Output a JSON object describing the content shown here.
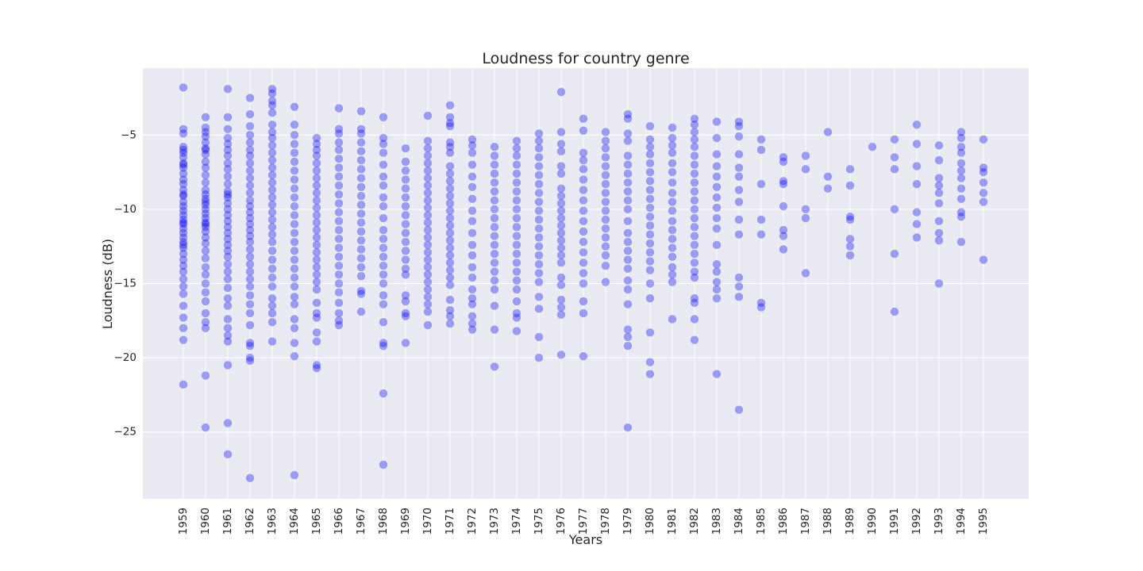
{
  "chart_data": {
    "type": "scatter",
    "title": "Loudness for country genre",
    "xlabel": "Years",
    "ylabel": "Loudness (dB)",
    "x_ticks": [
      "1959",
      "1960",
      "1961",
      "1962",
      "1963",
      "1964",
      "1965",
      "1966",
      "1967",
      "1968",
      "1969",
      "1970",
      "1971",
      "1972",
      "1973",
      "1974",
      "1975",
      "1976",
      "1977",
      "1978",
      "1979",
      "1980",
      "1981",
      "1982",
      "1983",
      "1984",
      "1985",
      "1986",
      "1987",
      "1988",
      "1989",
      "1990",
      "1991",
      "1992",
      "1993",
      "1994",
      "1995"
    ],
    "y_ticks": [
      -25,
      -20,
      -15,
      -10,
      -5
    ],
    "ylim": [
      -29.5,
      -0.5
    ],
    "grid": true,
    "marker_color": "#0000ff",
    "marker_alpha": 0.35,
    "points": [
      {
        "year": "1959",
        "y": [
          -1.8,
          -4.6,
          -4.9,
          -5.8,
          -6.2,
          -6.5,
          -6.9,
          -7.2,
          -7.6,
          -8.0,
          -8.3,
          -8.7,
          -9.1,
          -9.5,
          -9.8,
          -10.1,
          -10.4,
          -10.7,
          -11.0,
          -11.3,
          -11.6,
          -11.9,
          -12.2,
          -12.6,
          -13.0,
          -13.4,
          -13.8,
          -14.2,
          -14.7,
          -15.2,
          -15.7,
          -16.5,
          -17.3,
          -18.0,
          -18.8,
          -21.8,
          -6.0,
          -7.0,
          -9.0,
          -10.9,
          -12.4
        ]
      },
      {
        "year": "1960",
        "y": [
          -3.8,
          -4.5,
          -4.8,
          -5.1,
          -5.5,
          -5.9,
          -6.3,
          -6.8,
          -7.2,
          -7.7,
          -8.2,
          -8.7,
          -9.0,
          -9.3,
          -9.7,
          -10.0,
          -10.3,
          -10.6,
          -10.9,
          -11.2,
          -11.5,
          -11.9,
          -12.3,
          -12.8,
          -13.3,
          -13.9,
          -14.4,
          -15.0,
          -15.6,
          -16.2,
          -17.0,
          -17.6,
          -18.0,
          -21.2,
          -24.7,
          -6.0,
          -9.5,
          -11.0
        ]
      },
      {
        "year": "1961",
        "y": [
          -1.9,
          -3.8,
          -4.6,
          -5.2,
          -5.6,
          -6.0,
          -6.4,
          -6.9,
          -7.3,
          -7.8,
          -8.3,
          -8.8,
          -9.2,
          -9.6,
          -10.0,
          -10.4,
          -10.8,
          -11.2,
          -11.6,
          -12.0,
          -12.4,
          -12.8,
          -13.2,
          -13.7,
          -14.2,
          -14.7,
          -15.3,
          -16.0,
          -16.5,
          -17.4,
          -18.0,
          -18.5,
          -18.9,
          -20.5,
          -24.4,
          -26.5,
          -9.0
        ]
      },
      {
        "year": "1962",
        "y": [
          -2.5,
          -3.6,
          -4.4,
          -5.0,
          -5.5,
          -6.0,
          -6.4,
          -6.9,
          -7.4,
          -7.9,
          -8.4,
          -8.9,
          -9.4,
          -9.8,
          -10.2,
          -10.6,
          -11.0,
          -11.4,
          -11.8,
          -12.2,
          -12.7,
          -13.2,
          -13.7,
          -14.2,
          -14.7,
          -15.2,
          -15.8,
          -16.4,
          -17.0,
          -17.8,
          -19.0,
          -19.2,
          -20.0,
          -20.2,
          -28.1
        ]
      },
      {
        "year": "1963",
        "y": [
          -1.9,
          -2.2,
          -2.7,
          -3.0,
          -3.5,
          -4.3,
          -4.8,
          -5.2,
          -5.7,
          -6.2,
          -6.7,
          -7.2,
          -7.7,
          -8.2,
          -8.7,
          -9.2,
          -9.7,
          -10.2,
          -10.7,
          -11.2,
          -11.7,
          -12.2,
          -12.8,
          -13.4,
          -14.0,
          -14.6,
          -15.2,
          -16.0,
          -16.5,
          -17.0,
          -17.6,
          -18.9
        ]
      },
      {
        "year": "1964",
        "y": [
          -3.1,
          -4.3,
          -5.0,
          -5.6,
          -6.2,
          -6.8,
          -7.4,
          -8.0,
          -8.6,
          -9.2,
          -9.8,
          -10.4,
          -11.0,
          -11.6,
          -12.2,
          -12.8,
          -13.4,
          -14.0,
          -14.6,
          -15.2,
          -15.9,
          -16.4,
          -17.4,
          -18.0,
          -19.0,
          -19.9,
          -27.9
        ]
      },
      {
        "year": "1965",
        "y": [
          -5.2,
          -5.6,
          -6.0,
          -6.4,
          -6.9,
          -7.4,
          -7.9,
          -8.4,
          -8.9,
          -9.4,
          -9.9,
          -10.4,
          -10.9,
          -11.4,
          -11.9,
          -12.4,
          -12.9,
          -13.4,
          -13.9,
          -14.4,
          -14.9,
          -15.4,
          -16.3,
          -17.0,
          -17.3,
          -18.3,
          -18.9,
          -20.5,
          -20.7
        ]
      },
      {
        "year": "1966",
        "y": [
          -3.2,
          -4.6,
          -4.9,
          -5.5,
          -6.0,
          -6.6,
          -7.2,
          -7.8,
          -8.4,
          -9.0,
          -9.6,
          -10.2,
          -10.8,
          -11.4,
          -12.0,
          -12.6,
          -13.2,
          -13.8,
          -14.4,
          -15.0,
          -15.6,
          -16.3,
          -17.0,
          -17.5,
          -17.8
        ]
      },
      {
        "year": "1967",
        "y": [
          -3.4,
          -4.6,
          -4.9,
          -5.5,
          -6.1,
          -6.7,
          -7.3,
          -7.9,
          -8.5,
          -9.1,
          -9.7,
          -10.3,
          -10.9,
          -11.5,
          -12.1,
          -12.7,
          -13.3,
          -13.9,
          -14.5,
          -15.5,
          -15.7,
          -16.9
        ]
      },
      {
        "year": "1968",
        "y": [
          -3.8,
          -5.2,
          -5.6,
          -6.2,
          -7.0,
          -7.8,
          -8.4,
          -9.2,
          -9.8,
          -10.6,
          -11.4,
          -12.0,
          -12.6,
          -13.2,
          -13.8,
          -14.4,
          -15.0,
          -15.8,
          -16.4,
          -17.6,
          -19.0,
          -19.2,
          -22.4,
          -27.2
        ]
      },
      {
        "year": "1969",
        "y": [
          -5.9,
          -6.8,
          -7.4,
          -8.0,
          -8.6,
          -9.2,
          -9.8,
          -10.4,
          -11.0,
          -11.6,
          -12.2,
          -12.8,
          -13.4,
          -14.0,
          -14.4,
          -15.8,
          -16.2,
          -17.0,
          -17.2,
          -19.0
        ]
      },
      {
        "year": "1970",
        "y": [
          -3.7,
          -5.4,
          -5.9,
          -6.4,
          -6.9,
          -7.4,
          -7.9,
          -8.4,
          -8.9,
          -9.4,
          -9.9,
          -10.4,
          -10.9,
          -11.4,
          -11.9,
          -12.4,
          -12.9,
          -13.4,
          -13.9,
          -14.4,
          -14.9,
          -15.4,
          -15.9,
          -16.4,
          -16.9,
          -17.8
        ]
      },
      {
        "year": "1971",
        "y": [
          -3.0,
          -3.8,
          -4.2,
          -4.4,
          -5.5,
          -5.8,
          -6.2,
          -7.1,
          -7.6,
          -8.1,
          -8.6,
          -9.1,
          -9.6,
          -10.1,
          -10.6,
          -11.1,
          -11.6,
          -12.1,
          -12.6,
          -13.1,
          -13.6,
          -14.1,
          -14.6,
          -15.1,
          -16.1,
          -16.8,
          -17.2,
          -17.7
        ]
      },
      {
        "year": "1972",
        "y": [
          -5.3,
          -5.7,
          -6.2,
          -7.0,
          -7.8,
          -8.5,
          -9.3,
          -10.1,
          -10.8,
          -11.6,
          -12.4,
          -13.1,
          -13.9,
          -14.6,
          -15.4,
          -16.0,
          -16.4,
          -17.2,
          -17.7,
          -18.1
        ]
      },
      {
        "year": "1973",
        "y": [
          -5.8,
          -6.4,
          -7.0,
          -7.6,
          -8.2,
          -8.8,
          -9.4,
          -10.0,
          -10.6,
          -11.2,
          -11.8,
          -12.4,
          -13.0,
          -13.6,
          -14.2,
          -14.8,
          -15.4,
          -16.5,
          -18.1,
          -20.6
        ]
      },
      {
        "year": "1974",
        "y": [
          -5.4,
          -5.9,
          -6.4,
          -7.0,
          -7.6,
          -8.2,
          -8.8,
          -9.4,
          -10.0,
          -10.6,
          -11.2,
          -11.8,
          -12.4,
          -13.0,
          -13.6,
          -14.2,
          -14.8,
          -15.4,
          -16.2,
          -17.0,
          -17.3,
          -18.2
        ]
      },
      {
        "year": "1975",
        "y": [
          -4.9,
          -5.4,
          -5.9,
          -6.5,
          -7.1,
          -7.7,
          -8.3,
          -8.9,
          -9.5,
          -10.1,
          -10.7,
          -11.3,
          -11.9,
          -12.5,
          -13.1,
          -13.7,
          -14.3,
          -14.9,
          -15.9,
          -16.7,
          -18.6,
          -20.0
        ]
      },
      {
        "year": "1976",
        "y": [
          -2.1,
          -4.8,
          -5.6,
          -6.1,
          -7.1,
          -7.6,
          -8.6,
          -9.1,
          -9.6,
          -10.1,
          -10.6,
          -11.1,
          -11.6,
          -12.1,
          -12.6,
          -13.1,
          -13.6,
          -14.6,
          -15.1,
          -16.1,
          -16.6,
          -17.1,
          -19.8
        ]
      },
      {
        "year": "1977",
        "y": [
          -3.9,
          -4.7,
          -6.2,
          -6.7,
          -7.3,
          -8.0,
          -8.7,
          -9.4,
          -10.1,
          -10.8,
          -11.5,
          -12.2,
          -12.9,
          -13.6,
          -14.3,
          -15.0,
          -16.2,
          -17.0,
          -19.9
        ]
      },
      {
        "year": "1978",
        "y": [
          -4.8,
          -5.4,
          -5.9,
          -6.5,
          -7.1,
          -7.7,
          -8.3,
          -8.9,
          -9.5,
          -10.1,
          -10.7,
          -11.3,
          -11.9,
          -12.5,
          -13.1,
          -13.8,
          -14.9
        ]
      },
      {
        "year": "1979",
        "y": [
          -3.6,
          -3.9,
          -4.9,
          -5.4,
          -6.4,
          -7.0,
          -7.6,
          -8.2,
          -8.8,
          -9.4,
          -10.0,
          -10.8,
          -11.6,
          -12.2,
          -12.8,
          -13.4,
          -14.0,
          -14.8,
          -15.4,
          -16.4,
          -18.1,
          -18.6,
          -19.2,
          -24.7
        ]
      },
      {
        "year": "1980",
        "y": [
          -4.4,
          -5.3,
          -5.8,
          -6.3,
          -6.9,
          -7.5,
          -8.1,
          -8.7,
          -9.3,
          -9.9,
          -10.5,
          -11.1,
          -11.7,
          -12.3,
          -12.9,
          -13.5,
          -14.1,
          -15.0,
          -16.0,
          -18.3,
          -20.3,
          -21.1
        ]
      },
      {
        "year": "1981",
        "y": [
          -4.5,
          -5.2,
          -5.7,
          -6.2,
          -6.9,
          -7.5,
          -8.2,
          -8.9,
          -9.5,
          -10.1,
          -10.8,
          -11.4,
          -12.0,
          -12.6,
          -13.2,
          -13.9,
          -14.4,
          -14.9,
          -17.4
        ]
      },
      {
        "year": "1982",
        "y": [
          -3.9,
          -4.3,
          -4.8,
          -5.3,
          -5.8,
          -6.4,
          -7.0,
          -7.6,
          -8.2,
          -8.8,
          -9.4,
          -10.0,
          -10.6,
          -11.2,
          -11.8,
          -12.4,
          -13.0,
          -13.6,
          -14.2,
          -14.6,
          -16.0,
          -16.3,
          -17.4,
          -18.8
        ]
      },
      {
        "year": "1983",
        "y": [
          -4.1,
          -5.2,
          -6.3,
          -7.1,
          -7.8,
          -8.5,
          -9.2,
          -9.9,
          -10.6,
          -11.3,
          -12.4,
          -13.7,
          -14.2,
          -14.9,
          -15.4,
          -16.0,
          -21.1
        ]
      },
      {
        "year": "1984",
        "y": [
          -4.1,
          -4.4,
          -5.1,
          -6.3,
          -7.2,
          -7.8,
          -8.7,
          -9.5,
          -10.7,
          -11.7,
          -14.6,
          -15.2,
          -15.9,
          -23.5
        ]
      },
      {
        "year": "1985",
        "y": [
          -5.3,
          -6.0,
          -8.3,
          -10.7,
          -11.7,
          -16.3,
          -16.6
        ]
      },
      {
        "year": "1986",
        "y": [
          -6.5,
          -6.8,
          -8.1,
          -8.3,
          -9.8,
          -11.4,
          -11.8,
          -12.7
        ]
      },
      {
        "year": "1987",
        "y": [
          -6.4,
          -7.3,
          -10.0,
          -10.6,
          -14.3
        ]
      },
      {
        "year": "1988",
        "y": [
          -4.8,
          -7.8,
          -8.6
        ]
      },
      {
        "year": "1989",
        "y": [
          -7.3,
          -8.4,
          -10.5,
          -10.7,
          -12.0,
          -12.5,
          -13.1
        ]
      },
      {
        "year": "1990",
        "y": [
          -5.8
        ]
      },
      {
        "year": "1991",
        "y": [
          -5.3,
          -6.5,
          -7.3,
          -10.0,
          -13.0,
          -16.9
        ]
      },
      {
        "year": "1992",
        "y": [
          -4.3,
          -5.6,
          -7.1,
          -8.3,
          -10.2,
          -11.0,
          -11.9
        ]
      },
      {
        "year": "1993",
        "y": [
          -5.7,
          -6.7,
          -7.9,
          -8.4,
          -8.9,
          -9.6,
          -10.8,
          -11.6,
          -12.1,
          -15.0
        ]
      },
      {
        "year": "1994",
        "y": [
          -4.8,
          -5.2,
          -5.8,
          -6.2,
          -6.9,
          -7.4,
          -7.9,
          -8.6,
          -9.3,
          -10.2,
          -10.5,
          -12.2
        ]
      },
      {
        "year": "1995",
        "y": [
          -5.3,
          -7.2,
          -7.5,
          -8.2,
          -8.9,
          -9.5,
          -13.4
        ]
      }
    ]
  }
}
